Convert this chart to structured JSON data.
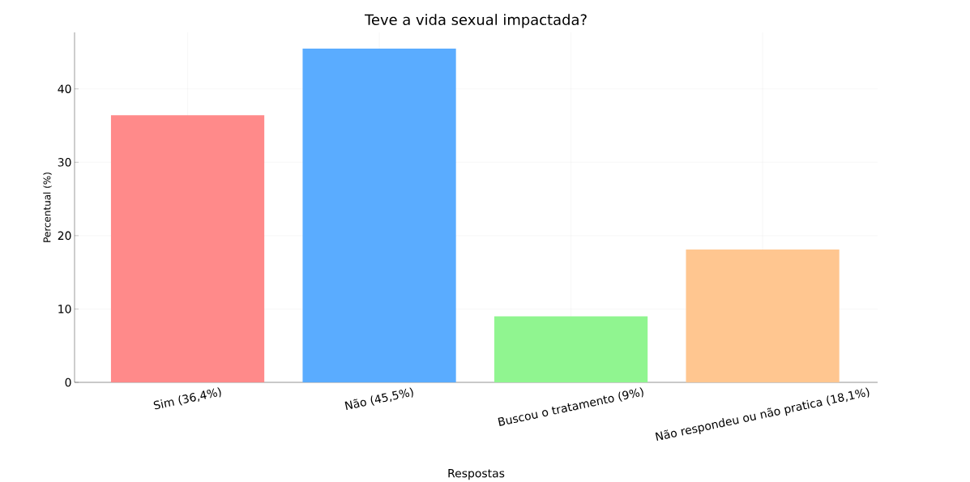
{
  "chart_data": {
    "type": "bar",
    "title": "Teve a vida sexual impactada?",
    "xlabel": "Respostas",
    "ylabel": "Percentual (%)",
    "categories": [
      "Sim (36,4%)",
      "Não (45,5%)",
      "Buscou o tratamento (9%)",
      "Não respondeu ou não pratica (18,1%)"
    ],
    "values": [
      36.4,
      45.5,
      9,
      18.1
    ],
    "colors": [
      "#ff8a8a",
      "#5aacff",
      "#90f590",
      "#ffc690"
    ],
    "ylim": [
      0,
      47.7
    ],
    "yticks": [
      0,
      10,
      20,
      30,
      40
    ],
    "grid": true
  }
}
